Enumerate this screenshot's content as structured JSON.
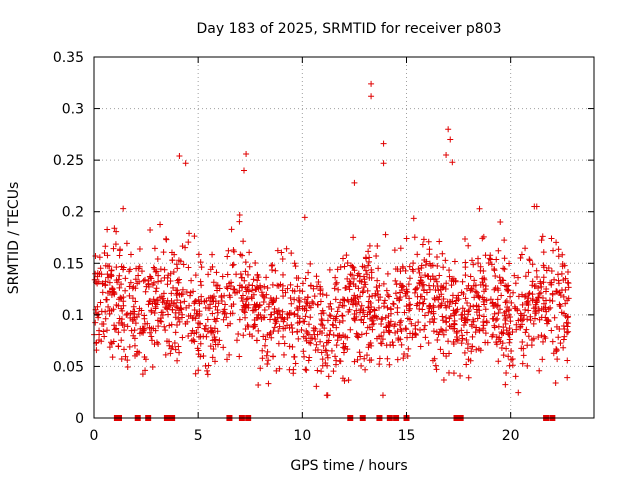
{
  "chart_data": {
    "type": "scatter",
    "title": "Day 183 of 2025, SRMTID for receiver p803",
    "xlabel": "GPS time / hours",
    "ylabel": "SRMTID / TECUs",
    "xlim": [
      0,
      24
    ],
    "ylim": [
      0,
      0.35
    ],
    "x_ticks": [
      0,
      5,
      10,
      15,
      20
    ],
    "x_tick_labels": [
      "0",
      "5",
      "10",
      "15",
      "20"
    ],
    "y_ticks": [
      0,
      0.05,
      0.1,
      0.15,
      0.2,
      0.25,
      0.3,
      0.35
    ],
    "y_tick_labels": [
      "0",
      "0.05",
      "0.1",
      "0.15",
      "0.2",
      "0.25",
      "0.3",
      "0.35"
    ],
    "grid": true,
    "marker": "+",
    "series_color": "#e00000",
    "x_data_range": [
      0,
      22.8
    ],
    "bulk_band": [
      0.04,
      0.18
    ],
    "notable_points": [
      {
        "x": 4.1,
        "y": 0.254
      },
      {
        "x": 4.4,
        "y": 0.247
      },
      {
        "x": 7.3,
        "y": 0.256
      },
      {
        "x": 7.2,
        "y": 0.24
      },
      {
        "x": 12.5,
        "y": 0.228
      },
      {
        "x": 13.3,
        "y": 0.324
      },
      {
        "x": 13.3,
        "y": 0.312
      },
      {
        "x": 13.9,
        "y": 0.266
      },
      {
        "x": 13.9,
        "y": 0.247
      },
      {
        "x": 17.0,
        "y": 0.28
      },
      {
        "x": 17.1,
        "y": 0.27
      },
      {
        "x": 16.9,
        "y": 0.255
      },
      {
        "x": 17.2,
        "y": 0.248
      },
      {
        "x": 1.4,
        "y": 0.203
      },
      {
        "x": 19.5,
        "y": 0.19
      }
    ],
    "zero_value_hours": [
      1.1,
      1.2,
      2.1,
      2.6,
      3.5,
      3.6,
      3.75,
      6.5,
      7.1,
      7.4,
      12.3,
      12.9,
      13.7,
      14.2,
      14.5,
      15.0,
      17.4,
      17.6,
      21.7,
      22.0
    ]
  }
}
